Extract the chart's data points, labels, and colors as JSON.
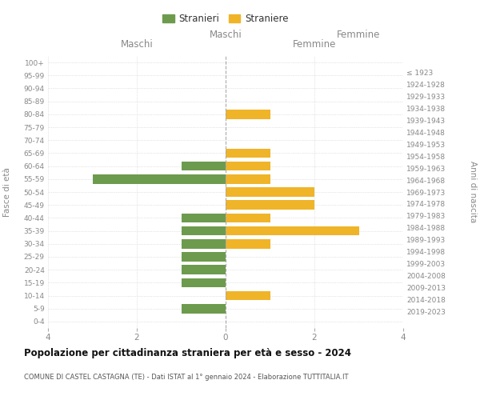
{
  "age_groups": [
    "0-4",
    "5-9",
    "10-14",
    "15-19",
    "20-24",
    "25-29",
    "30-34",
    "35-39",
    "40-44",
    "45-49",
    "50-54",
    "55-59",
    "60-64",
    "65-69",
    "70-74",
    "75-79",
    "80-84",
    "85-89",
    "90-94",
    "95-99",
    "100+"
  ],
  "birth_years": [
    "2019-2023",
    "2014-2018",
    "2009-2013",
    "2004-2008",
    "1999-2003",
    "1994-1998",
    "1989-1993",
    "1984-1988",
    "1979-1983",
    "1974-1978",
    "1969-1973",
    "1964-1968",
    "1959-1963",
    "1954-1958",
    "1949-1953",
    "1944-1948",
    "1939-1943",
    "1934-1938",
    "1929-1933",
    "1924-1928",
    "≤ 1923"
  ],
  "maschi": [
    0,
    1,
    0,
    1,
    1,
    1,
    1,
    1,
    1,
    0,
    0,
    3,
    1,
    0,
    0,
    0,
    0,
    0,
    0,
    0,
    0
  ],
  "femmine": [
    0,
    0,
    1,
    0,
    0,
    0,
    1,
    3,
    1,
    2,
    2,
    1,
    1,
    1,
    0,
    0,
    1,
    0,
    0,
    0,
    0
  ],
  "color_maschi": "#6d9b4e",
  "color_femmine": "#f0b429",
  "title_main": "Popolazione per cittadinanza straniera per età e sesso - 2024",
  "title_sub": "COMUNE DI CASTEL CASTAGNA (TE) - Dati ISTAT al 1° gennaio 2024 - Elaborazione TUTTITALIA.IT",
  "legend_maschi": "Stranieri",
  "legend_femmine": "Straniere",
  "xlabel_left": "Maschi",
  "xlabel_right": "Femmine",
  "ylabel_left": "Fasce di età",
  "ylabel_right": "Anni di nascita",
  "xlim": 4,
  "background_color": "#ffffff"
}
